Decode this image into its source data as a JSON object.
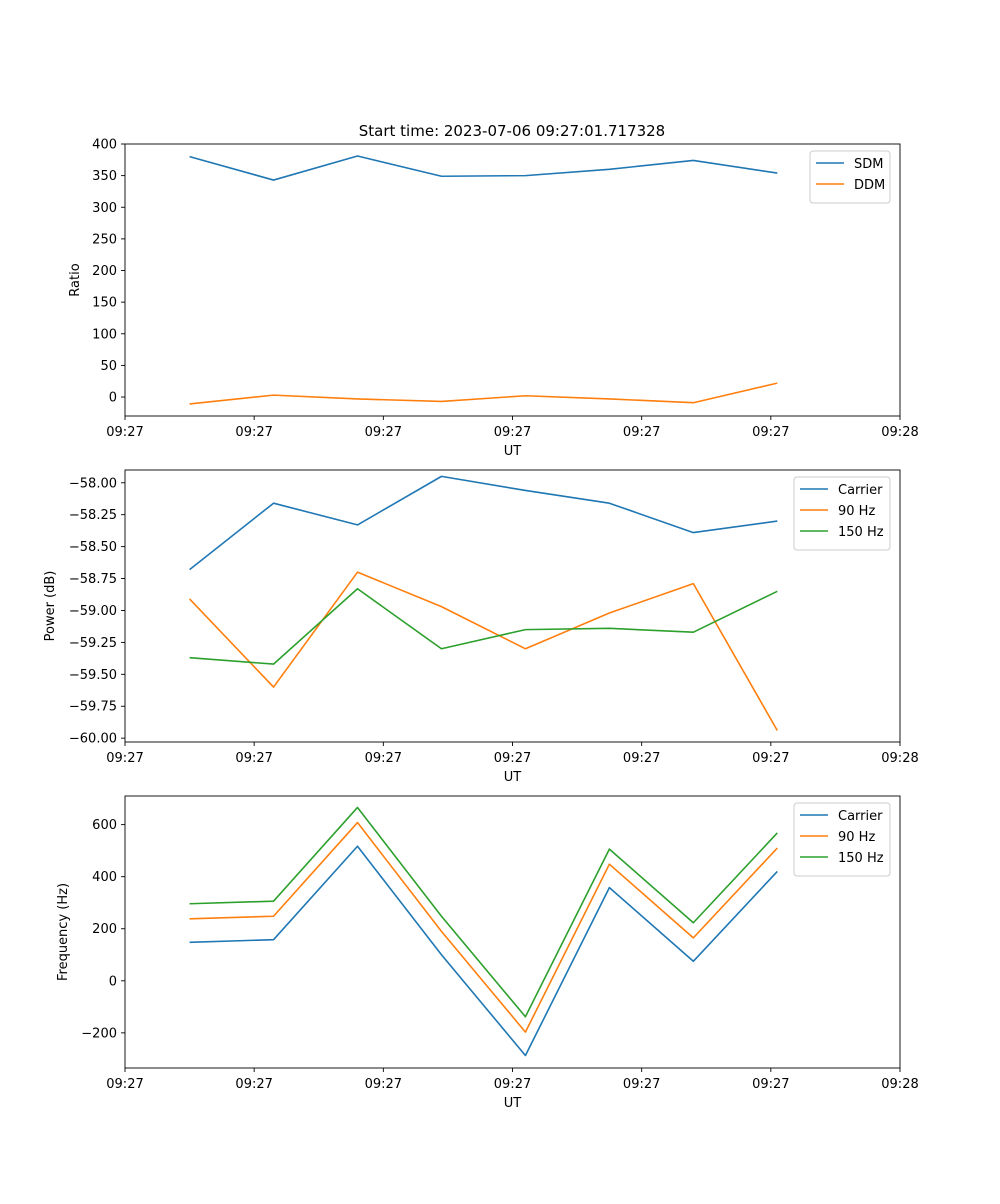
{
  "figure_title": "Start time: 2023-07-06 09:27:01.717328",
  "colors": {
    "c1": "#1f77b4",
    "c2": "#ff7f0e",
    "c3": "#2ca02c"
  },
  "chart_data": [
    {
      "type": "line",
      "title": "Start time: 2023-07-06 09:27:01.717328",
      "xlabel": "UT",
      "ylabel": "Ratio",
      "x_tick_labels": [
        "09:27",
        "09:27",
        "09:27",
        "09:27",
        "09:27",
        "09:27",
        "09:28"
      ],
      "xlim": [
        0,
        6
      ],
      "x": [
        0.5,
        1.15,
        1.8,
        2.45,
        3.1,
        3.75,
        4.4,
        5.05
      ],
      "yticks": [
        0,
        50,
        100,
        150,
        200,
        250,
        300,
        350,
        400
      ],
      "ylim": [
        -30,
        400
      ],
      "legend_loc": "upper-right",
      "series": [
        {
          "name": "SDM",
          "color": "#1f77b4",
          "values": [
            380,
            343,
            381,
            349,
            350,
            360,
            374,
            354
          ]
        },
        {
          "name": "DDM",
          "color": "#ff7f0e",
          "values": [
            -11,
            3,
            -3,
            -7,
            2,
            -3,
            -9,
            22
          ]
        }
      ]
    },
    {
      "type": "line",
      "xlabel": "UT",
      "ylabel": "Power (dB)",
      "x_tick_labels": [
        "09:27",
        "09:27",
        "09:27",
        "09:27",
        "09:27",
        "09:27",
        "09:28"
      ],
      "xlim": [
        0,
        6
      ],
      "x": [
        0.5,
        1.15,
        1.8,
        2.45,
        3.1,
        3.75,
        4.4,
        5.05
      ],
      "yticks": [
        -60.0,
        -59.75,
        -59.5,
        -59.25,
        -59.0,
        -58.75,
        -58.5,
        -58.25,
        -58.0
      ],
      "ytick_labels": [
        "−60.00",
        "−59.75",
        "−59.50",
        "−59.25",
        "−59.00",
        "−58.75",
        "−58.50",
        "−58.25",
        "−58.00"
      ],
      "ylim": [
        -60.03,
        -57.9
      ],
      "legend_loc": "upper-right",
      "series": [
        {
          "name": "Carrier",
          "color": "#1f77b4",
          "values": [
            -58.68,
            -58.16,
            -58.33,
            -57.95,
            -58.06,
            -58.16,
            -58.39,
            -58.3
          ]
        },
        {
          "name": "90 Hz",
          "color": "#ff7f0e",
          "values": [
            -58.91,
            -59.6,
            -58.7,
            -58.97,
            -59.3,
            -59.02,
            -58.79,
            -59.94
          ]
        },
        {
          "name": "150 Hz",
          "color": "#2ca02c",
          "values": [
            -59.37,
            -59.42,
            -58.83,
            -59.3,
            -59.15,
            -59.14,
            -59.17,
            -58.85
          ]
        }
      ]
    },
    {
      "type": "line",
      "xlabel": "UT",
      "ylabel": "Frequency (Hz)",
      "x_tick_labels": [
        "09:27",
        "09:27",
        "09:27",
        "09:27",
        "09:27",
        "09:27",
        "09:28"
      ],
      "xlim": [
        0,
        6
      ],
      "x": [
        0.5,
        1.15,
        1.8,
        2.45,
        3.1,
        3.75,
        4.4,
        5.05
      ],
      "yticks": [
        -200,
        0,
        200,
        400,
        600
      ],
      "ytick_labels": [
        "−200",
        "0",
        "200",
        "400",
        "600"
      ],
      "ylim": [
        -335,
        710
      ],
      "legend_loc": "upper-right",
      "series": [
        {
          "name": "Carrier",
          "color": "#1f77b4",
          "values": [
            148,
            158,
            517,
            100,
            -287,
            358,
            75,
            420
          ]
        },
        {
          "name": "90 Hz",
          "color": "#ff7f0e",
          "values": [
            238,
            248,
            608,
            190,
            -197,
            448,
            165,
            510
          ]
        },
        {
          "name": "150 Hz",
          "color": "#2ca02c",
          "values": [
            296,
            306,
            666,
            248,
            -138,
            506,
            223,
            568
          ]
        }
      ]
    }
  ]
}
